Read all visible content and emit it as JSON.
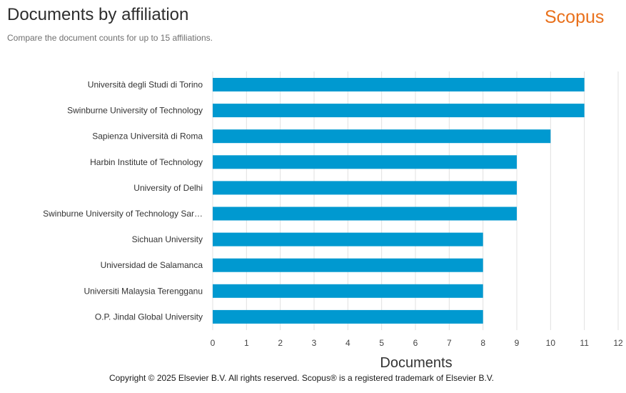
{
  "header": {
    "title": "Documents by affiliation",
    "subtitle": "Compare the document counts for up to 15 affiliations.",
    "logo_text": "Scopus"
  },
  "footer": {
    "copyright": "Copyright © 2025 Elsevier B.V. All rights reserved. Scopus® is a registered trademark of Elsevier B.V."
  },
  "colors": {
    "bar": "#0099d0",
    "grid": "#e0e0e0",
    "logo": "#e9711c"
  },
  "chart_data": {
    "type": "bar",
    "orientation": "horizontal",
    "categories": [
      "Università degli Studi di Torino",
      "Swinburne University of Technology",
      "Sapienza Università di Roma",
      "Harbin Institute of Technology",
      "University of Delhi",
      "Swinburne University of Technology Sar…",
      "Sichuan University",
      "Universidad de Salamanca",
      "Universiti Malaysia Terengganu",
      "O.P. Jindal Global University"
    ],
    "values": [
      11,
      11,
      10,
      9,
      9,
      9,
      8,
      8,
      8,
      8
    ],
    "xlabel": "Documents",
    "xlim": [
      0,
      12
    ],
    "xticks": [
      0,
      1,
      2,
      3,
      4,
      5,
      6,
      7,
      8,
      9,
      10,
      11,
      12
    ],
    "grid": true
  }
}
